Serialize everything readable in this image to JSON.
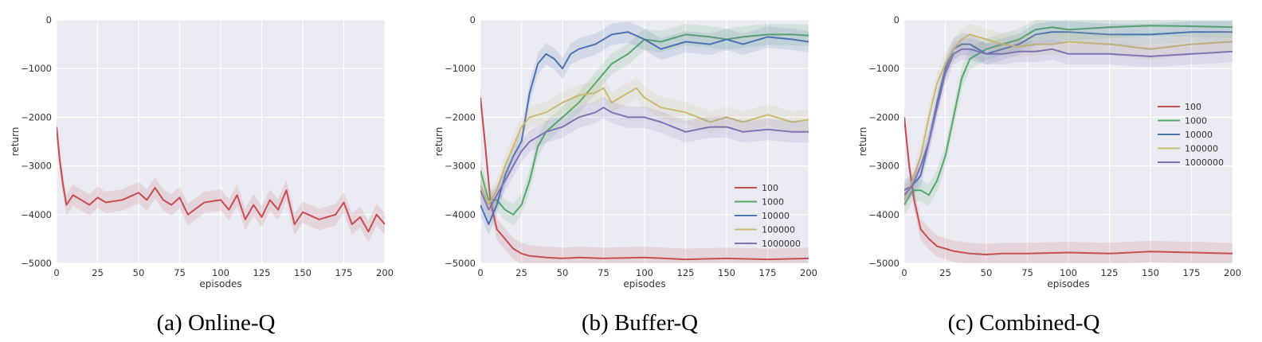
{
  "chart_data": [
    {
      "type": "line",
      "caption": "(a) Online-Q",
      "xlabel": "episodes",
      "ylabel": "return",
      "xlim": [
        0,
        200
      ],
      "ylim": [
        -5000,
        0
      ],
      "xticks": [
        0,
        25,
        50,
        75,
        100,
        125,
        150,
        175,
        200
      ],
      "yticks": [
        0,
        -1000,
        -2000,
        -3000,
        -4000,
        -5000
      ],
      "grid": true,
      "legend": null,
      "series": [
        {
          "name": "",
          "color": "#c44e52",
          "x": [
            0,
            2,
            4,
            6,
            10,
            15,
            20,
            25,
            30,
            40,
            50,
            55,
            60,
            65,
            70,
            75,
            80,
            90,
            100,
            105,
            110,
            115,
            120,
            125,
            130,
            135,
            140,
            145,
            150,
            160,
            170,
            175,
            180,
            185,
            190,
            195,
            200
          ],
          "y": [
            -2200,
            -2900,
            -3400,
            -3800,
            -3600,
            -3700,
            -3800,
            -3650,
            -3750,
            -3700,
            -3550,
            -3700,
            -3450,
            -3700,
            -3800,
            -3650,
            -4000,
            -3750,
            -3700,
            -3900,
            -3600,
            -4100,
            -3800,
            -4050,
            -3700,
            -3900,
            -3500,
            -4200,
            -3950,
            -4100,
            -4000,
            -3750,
            -4200,
            -4050,
            -4350,
            -4000,
            -4200
          ]
        }
      ]
    },
    {
      "type": "line",
      "caption": "(b) Buffer-Q",
      "xlabel": "episodes",
      "ylabel": "return",
      "xlim": [
        0,
        200
      ],
      "ylim": [
        -5000,
        0
      ],
      "xticks": [
        0,
        25,
        50,
        75,
        100,
        125,
        150,
        175,
        200
      ],
      "yticks": [
        0,
        -1000,
        -2000,
        -3000,
        -4000,
        -5000
      ],
      "grid": true,
      "legend": "bottom-right",
      "series": [
        {
          "name": "100",
          "color": "#c44e52",
          "x": [
            0,
            3,
            6,
            10,
            15,
            20,
            25,
            30,
            40,
            50,
            60,
            75,
            100,
            125,
            150,
            175,
            200
          ],
          "y": [
            -1600,
            -2600,
            -3700,
            -4300,
            -4500,
            -4700,
            -4800,
            -4850,
            -4880,
            -4900,
            -4880,
            -4900,
            -4880,
            -4920,
            -4900,
            -4920,
            -4900
          ]
        },
        {
          "name": "1000",
          "color": "#55a868",
          "x": [
            0,
            5,
            10,
            15,
            20,
            25,
            30,
            35,
            40,
            50,
            60,
            70,
            80,
            90,
            100,
            110,
            125,
            140,
            150,
            160,
            175,
            190,
            200
          ],
          "y": [
            -3100,
            -3700,
            -3700,
            -3900,
            -4000,
            -3800,
            -3300,
            -2600,
            -2300,
            -2000,
            -1700,
            -1300,
            -900,
            -700,
            -400,
            -450,
            -300,
            -350,
            -400,
            -350,
            -300,
            -300,
            -320
          ]
        },
        {
          "name": "10000",
          "color": "#4c72b0",
          "x": [
            0,
            5,
            10,
            15,
            20,
            25,
            30,
            35,
            40,
            45,
            50,
            55,
            60,
            70,
            80,
            90,
            100,
            110,
            125,
            140,
            150,
            160,
            175,
            190,
            200
          ],
          "y": [
            -3800,
            -4200,
            -3800,
            -3200,
            -2800,
            -2500,
            -1500,
            -900,
            -700,
            -800,
            -1000,
            -700,
            -600,
            -500,
            -300,
            -250,
            -400,
            -600,
            -450,
            -500,
            -400,
            -500,
            -350,
            -400,
            -450
          ]
        },
        {
          "name": "100000",
          "color": "#ccb974",
          "x": [
            0,
            5,
            10,
            15,
            20,
            25,
            30,
            40,
            50,
            60,
            70,
            75,
            80,
            90,
            95,
            100,
            110,
            125,
            140,
            150,
            160,
            175,
            190,
            200
          ],
          "y": [
            -3400,
            -3800,
            -3500,
            -3000,
            -2600,
            -2200,
            -2000,
            -1900,
            -1700,
            -1550,
            -1500,
            -1400,
            -1700,
            -1500,
            -1400,
            -1600,
            -1800,
            -1900,
            -2100,
            -2000,
            -2100,
            -1950,
            -2100,
            -2050
          ]
        },
        {
          "name": "1000000",
          "color": "#8172b2",
          "x": [
            0,
            5,
            10,
            15,
            20,
            25,
            30,
            40,
            50,
            60,
            70,
            75,
            80,
            90,
            100,
            110,
            125,
            140,
            150,
            160,
            175,
            190,
            200
          ],
          "y": [
            -3500,
            -3900,
            -3600,
            -3300,
            -3000,
            -2700,
            -2500,
            -2300,
            -2200,
            -2000,
            -1900,
            -1800,
            -1900,
            -2000,
            -2000,
            -2100,
            -2300,
            -2200,
            -2200,
            -2300,
            -2250,
            -2300,
            -2300
          ]
        }
      ]
    },
    {
      "type": "line",
      "caption": "(c) Combined-Q",
      "xlabel": "episodes",
      "ylabel": "return",
      "xlim": [
        0,
        200
      ],
      "ylim": [
        -5000,
        0
      ],
      "xticks": [
        0,
        25,
        50,
        75,
        100,
        125,
        150,
        175,
        200
      ],
      "yticks": [
        0,
        -1000,
        -2000,
        -3000,
        -4000,
        -5000
      ],
      "grid": true,
      "legend": "center-right",
      "series": [
        {
          "name": "100",
          "color": "#c44e52",
          "x": [
            0,
            3,
            6,
            10,
            15,
            20,
            25,
            30,
            40,
            50,
            60,
            75,
            100,
            125,
            150,
            175,
            200
          ],
          "y": [
            -2000,
            -3000,
            -3700,
            -4300,
            -4500,
            -4650,
            -4700,
            -4750,
            -4800,
            -4820,
            -4800,
            -4800,
            -4780,
            -4800,
            -4760,
            -4780,
            -4800
          ]
        },
        {
          "name": "1000",
          "color": "#55a868",
          "x": [
            0,
            5,
            10,
            15,
            20,
            25,
            30,
            35,
            40,
            50,
            60,
            70,
            80,
            90,
            100,
            125,
            150,
            175,
            200
          ],
          "y": [
            -3800,
            -3500,
            -3500,
            -3600,
            -3300,
            -2800,
            -2000,
            -1200,
            -800,
            -600,
            -500,
            -400,
            -200,
            -150,
            -200,
            -150,
            -120,
            -130,
            -150
          ]
        },
        {
          "name": "10000",
          "color": "#4c72b0",
          "x": [
            0,
            5,
            10,
            15,
            20,
            25,
            30,
            35,
            40,
            50,
            60,
            70,
            80,
            90,
            100,
            125,
            150,
            175,
            200
          ],
          "y": [
            -3500,
            -3400,
            -3200,
            -2500,
            -1700,
            -1000,
            -600,
            -500,
            -500,
            -700,
            -600,
            -500,
            -300,
            -250,
            -250,
            -300,
            -300,
            -250,
            -250
          ]
        },
        {
          "name": "100000",
          "color": "#ccb974",
          "x": [
            0,
            5,
            10,
            15,
            20,
            25,
            30,
            35,
            40,
            50,
            60,
            70,
            80,
            90,
            100,
            125,
            150,
            175,
            200
          ],
          "y": [
            -3700,
            -3300,
            -2800,
            -2000,
            -1300,
            -900,
            -600,
            -400,
            -300,
            -400,
            -500,
            -550,
            -500,
            -500,
            -450,
            -500,
            -600,
            -500,
            -450
          ]
        },
        {
          "name": "1000000",
          "color": "#8172b2",
          "x": [
            0,
            5,
            10,
            15,
            20,
            25,
            30,
            35,
            40,
            50,
            60,
            70,
            80,
            90,
            100,
            125,
            150,
            175,
            200
          ],
          "y": [
            -3600,
            -3400,
            -3000,
            -2500,
            -1800,
            -1100,
            -700,
            -600,
            -600,
            -700,
            -700,
            -650,
            -650,
            -600,
            -700,
            -700,
            -750,
            -700,
            -650
          ]
        }
      ]
    }
  ]
}
